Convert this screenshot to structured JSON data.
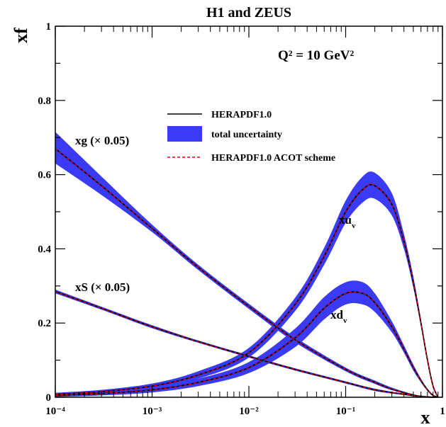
{
  "chart_data": {
    "type": "line",
    "title": "H1 and ZEUS",
    "annotation_q2": "Q² = 10 GeV²",
    "xlabel": "x",
    "ylabel": "xf",
    "x_scale": "log",
    "xlim": [
      0.0001,
      1
    ],
    "ylim": [
      0,
      1
    ],
    "x_ticks": [
      "10⁻⁴",
      "10⁻³",
      "10⁻²",
      "10⁻¹",
      "1"
    ],
    "y_ticks": [
      "0",
      "0.2",
      "0.4",
      "0.6",
      "0.8",
      "1"
    ],
    "grid": false,
    "legend_position": "center",
    "legend": [
      {
        "label": "HERAPDF1.0",
        "style": "solid",
        "color": "#000000"
      },
      {
        "label": "total uncertainty",
        "style": "band",
        "color": "#3b3bf5"
      },
      {
        "label": "HERAPDF1.0 ACOT scheme",
        "style": "dashed",
        "color": "#e8000b"
      }
    ],
    "series": [
      {
        "label": "xg (× 0.05)",
        "x": [
          0.0001,
          0.0003,
          0.001,
          0.003,
          0.01,
          0.03,
          0.1,
          0.2,
          0.3,
          0.5,
          0.7,
          0.85
        ],
        "central": [
          0.67,
          0.57,
          0.455,
          0.35,
          0.245,
          0.155,
          0.075,
          0.04,
          0.022,
          0.006,
          0.001,
          0.0
        ],
        "upper": [
          0.715,
          0.595,
          0.465,
          0.357,
          0.252,
          0.162,
          0.08,
          0.045,
          0.026,
          0.008,
          0.002,
          0.0
        ],
        "lower": [
          0.63,
          0.545,
          0.445,
          0.343,
          0.238,
          0.148,
          0.07,
          0.036,
          0.019,
          0.005,
          0.0,
          0.0
        ]
      },
      {
        "label": "xS (× 0.05)",
        "x": [
          0.0001,
          0.0003,
          0.001,
          0.003,
          0.01,
          0.03,
          0.1,
          0.2,
          0.4,
          0.6,
          0.8
        ],
        "central": [
          0.285,
          0.24,
          0.19,
          0.15,
          0.11,
          0.075,
          0.04,
          0.02,
          0.008,
          0.002,
          0.0
        ],
        "upper": [
          0.29,
          0.244,
          0.194,
          0.153,
          0.113,
          0.078,
          0.043,
          0.023,
          0.01,
          0.003,
          0.0
        ],
        "lower": [
          0.28,
          0.236,
          0.186,
          0.147,
          0.107,
          0.072,
          0.037,
          0.017,
          0.006,
          0.001,
          0.0
        ]
      },
      {
        "label": "xu_v",
        "x": [
          0.0001,
          0.0003,
          0.001,
          0.003,
          0.01,
          0.03,
          0.06,
          0.1,
          0.15,
          0.2,
          0.3,
          0.4,
          0.5,
          0.6,
          0.7,
          0.8,
          0.9
        ],
        "central": [
          0.008,
          0.015,
          0.03,
          0.06,
          0.12,
          0.25,
          0.38,
          0.5,
          0.56,
          0.57,
          0.52,
          0.42,
          0.31,
          0.2,
          0.1,
          0.03,
          0.0
        ],
        "upper": [
          0.012,
          0.02,
          0.037,
          0.07,
          0.133,
          0.268,
          0.403,
          0.53,
          0.595,
          0.605,
          0.55,
          0.44,
          0.325,
          0.21,
          0.105,
          0.035,
          0.0
        ],
        "lower": [
          0.004,
          0.01,
          0.023,
          0.05,
          0.107,
          0.232,
          0.357,
          0.47,
          0.525,
          0.535,
          0.49,
          0.4,
          0.295,
          0.19,
          0.095,
          0.025,
          0.0
        ]
      },
      {
        "label": "xd_v",
        "x": [
          0.0001,
          0.0003,
          0.001,
          0.003,
          0.01,
          0.03,
          0.06,
          0.1,
          0.15,
          0.2,
          0.3,
          0.4,
          0.5,
          0.6,
          0.7,
          0.8,
          0.9
        ],
        "central": [
          0.005,
          0.01,
          0.02,
          0.04,
          0.08,
          0.16,
          0.24,
          0.28,
          0.28,
          0.255,
          0.19,
          0.13,
          0.08,
          0.045,
          0.02,
          0.005,
          0.0
        ],
        "upper": [
          0.009,
          0.015,
          0.027,
          0.05,
          0.095,
          0.185,
          0.27,
          0.31,
          0.31,
          0.28,
          0.205,
          0.14,
          0.088,
          0.05,
          0.023,
          0.007,
          0.0
        ],
        "lower": [
          0.001,
          0.005,
          0.013,
          0.03,
          0.065,
          0.135,
          0.21,
          0.25,
          0.25,
          0.23,
          0.175,
          0.12,
          0.072,
          0.04,
          0.017,
          0.003,
          0.0
        ]
      }
    ],
    "colors": {
      "band": "#3b3bf5",
      "central": "#000000",
      "acot": "#e8000b",
      "frame": "#000000"
    }
  }
}
